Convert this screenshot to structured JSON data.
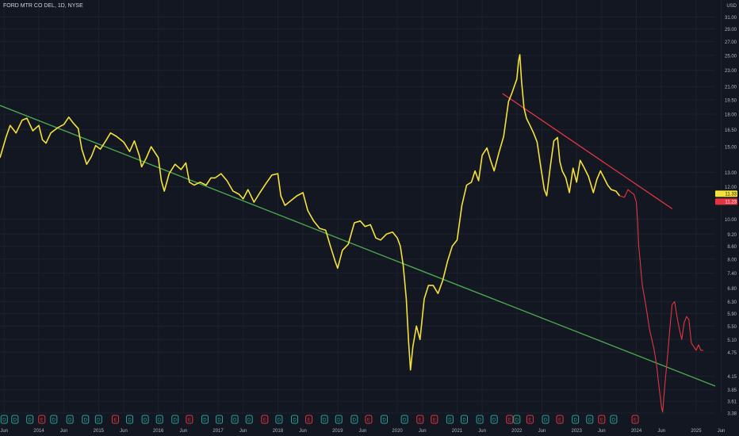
{
  "header": {
    "title": "FORD MTR CO DEL, 1D, NYSE"
  },
  "colors": {
    "background": "#131722",
    "grid": "#1e222d",
    "price_line": "#f5e13a",
    "projection_line": "#e3353f",
    "support_trendline": "#4caf50",
    "resistance_trendline": "#e3353f",
    "axis_text": "#b2b5be",
    "last_price_badge": "#f5e13a",
    "projected_price_badge": "#e3353f"
  },
  "chart_data": {
    "type": "line",
    "title": "FORD MTR CO DEL, 1D, NYSE",
    "y_axis": {
      "unit_label": "USD",
      "scale": "log",
      "ylim": [
        3.38,
        33.2
      ],
      "ticks": [
        "31.00",
        "29.00",
        "27.00",
        "25.00",
        "23.00",
        "21.00",
        "19.50",
        "18.00",
        "16.50",
        "15.00",
        "13.00",
        "12.00",
        "10.00",
        "9.20",
        "8.60",
        "8.00",
        "7.40",
        "6.80",
        "6.30",
        "5.90",
        "5.50",
        "5.10",
        "4.75",
        "4.15",
        "3.85",
        "3.61",
        "3.38"
      ]
    },
    "x_axis": {
      "range": [
        2013.35,
        2025.32
      ],
      "ticks": [
        {
          "label": "Jun",
          "t": 2013.42
        },
        {
          "label": "2014",
          "t": 2014.0
        },
        {
          "label": "Jun",
          "t": 2014.42
        },
        {
          "label": "2015",
          "t": 2015.0
        },
        {
          "label": "Jun",
          "t": 2015.42
        },
        {
          "label": "2016",
          "t": 2016.0
        },
        {
          "label": "Jun",
          "t": 2016.42
        },
        {
          "label": "2017",
          "t": 2017.0
        },
        {
          "label": "Jun",
          "t": 2017.42
        },
        {
          "label": "2018",
          "t": 2018.0
        },
        {
          "label": "Jun",
          "t": 2018.42
        },
        {
          "label": "2019",
          "t": 2019.0
        },
        {
          "label": "Jun",
          "t": 2019.42
        },
        {
          "label": "2020",
          "t": 2020.0
        },
        {
          "label": "Jun",
          "t": 2020.42
        },
        {
          "label": "2021",
          "t": 2021.0
        },
        {
          "label": "Jun",
          "t": 2021.42
        },
        {
          "label": "2022",
          "t": 2022.0
        },
        {
          "label": "Jun",
          "t": 2022.42
        },
        {
          "label": "2023",
          "t": 2023.0
        },
        {
          "label": "Jun",
          "t": 2023.42
        },
        {
          "label": "2024",
          "t": 2024.0
        },
        {
          "label": "Jun",
          "t": 2024.42
        },
        {
          "label": "2025",
          "t": 2025.0
        },
        {
          "label": "Jun",
          "t": 2025.42
        }
      ]
    },
    "grid": true,
    "series": [
      {
        "kind": "price",
        "points": [
          [
            2013.35,
            14.1
          ],
          [
            2013.45,
            15.8
          ],
          [
            2013.52,
            16.9
          ],
          [
            2013.62,
            16.2
          ],
          [
            2013.72,
            17.4
          ],
          [
            2013.8,
            17.6
          ],
          [
            2013.9,
            16.4
          ],
          [
            2014.0,
            16.9
          ],
          [
            2014.06,
            15.6
          ],
          [
            2014.12,
            15.3
          ],
          [
            2014.2,
            16.2
          ],
          [
            2014.32,
            16.7
          ],
          [
            2014.42,
            17.0
          ],
          [
            2014.5,
            17.7
          ],
          [
            2014.58,
            17.1
          ],
          [
            2014.66,
            16.6
          ],
          [
            2014.72,
            14.8
          ],
          [
            2014.8,
            13.6
          ],
          [
            2014.88,
            14.2
          ],
          [
            2014.95,
            15.1
          ],
          [
            2015.03,
            14.8
          ],
          [
            2015.12,
            15.5
          ],
          [
            2015.2,
            16.2
          ],
          [
            2015.3,
            15.9
          ],
          [
            2015.42,
            15.4
          ],
          [
            2015.52,
            14.6
          ],
          [
            2015.6,
            15.5
          ],
          [
            2015.68,
            14.3
          ],
          [
            2015.72,
            13.4
          ],
          [
            2015.8,
            14.1
          ],
          [
            2015.88,
            15.0
          ],
          [
            2016.0,
            14.1
          ],
          [
            2016.05,
            12.4
          ],
          [
            2016.1,
            11.7
          ],
          [
            2016.18,
            12.9
          ],
          [
            2016.28,
            13.6
          ],
          [
            2016.38,
            13.2
          ],
          [
            2016.46,
            13.7
          ],
          [
            2016.52,
            12.3
          ],
          [
            2016.6,
            12.1
          ],
          [
            2016.7,
            12.3
          ],
          [
            2016.8,
            12.1
          ],
          [
            2016.88,
            12.6
          ],
          [
            2016.95,
            12.6
          ],
          [
            2017.05,
            12.9
          ],
          [
            2017.15,
            12.4
          ],
          [
            2017.25,
            11.7
          ],
          [
            2017.35,
            11.5
          ],
          [
            2017.42,
            11.2
          ],
          [
            2017.5,
            11.8
          ],
          [
            2017.6,
            11.0
          ],
          [
            2017.7,
            11.6
          ],
          [
            2017.8,
            12.2
          ],
          [
            2017.9,
            12.8
          ],
          [
            2018.0,
            12.9
          ],
          [
            2018.05,
            11.4
          ],
          [
            2018.12,
            10.8
          ],
          [
            2018.22,
            11.1
          ],
          [
            2018.32,
            11.4
          ],
          [
            2018.42,
            11.6
          ],
          [
            2018.5,
            10.5
          ],
          [
            2018.6,
            9.9
          ],
          [
            2018.7,
            9.5
          ],
          [
            2018.8,
            9.4
          ],
          [
            2018.88,
            8.6
          ],
          [
            2018.96,
            7.9
          ],
          [
            2019.0,
            7.6
          ],
          [
            2019.08,
            8.4
          ],
          [
            2019.18,
            8.7
          ],
          [
            2019.28,
            9.8
          ],
          [
            2019.38,
            9.9
          ],
          [
            2019.46,
            9.6
          ],
          [
            2019.55,
            9.7
          ],
          [
            2019.64,
            9.0
          ],
          [
            2019.72,
            8.9
          ],
          [
            2019.82,
            9.2
          ],
          [
            2019.92,
            9.3
          ],
          [
            2020.0,
            9.0
          ],
          [
            2020.05,
            8.6
          ],
          [
            2020.1,
            7.7
          ],
          [
            2020.15,
            6.4
          ],
          [
            2020.19,
            5.0
          ],
          [
            2020.22,
            4.3
          ],
          [
            2020.26,
            4.9
          ],
          [
            2020.32,
            5.5
          ],
          [
            2020.38,
            5.1
          ],
          [
            2020.45,
            6.4
          ],
          [
            2020.52,
            6.9
          ],
          [
            2020.6,
            6.9
          ],
          [
            2020.68,
            6.6
          ],
          [
            2020.76,
            7.1
          ],
          [
            2020.84,
            7.9
          ],
          [
            2020.92,
            8.6
          ],
          [
            2021.0,
            8.9
          ],
          [
            2021.08,
            10.8
          ],
          [
            2021.16,
            12.1
          ],
          [
            2021.24,
            12.3
          ],
          [
            2021.3,
            13.1
          ],
          [
            2021.36,
            12.4
          ],
          [
            2021.42,
            14.3
          ],
          [
            2021.5,
            14.9
          ],
          [
            2021.56,
            13.9
          ],
          [
            2021.62,
            13.1
          ],
          [
            2021.7,
            14.5
          ],
          [
            2021.78,
            15.9
          ],
          [
            2021.86,
            19.3
          ],
          [
            2021.92,
            20.3
          ],
          [
            2021.96,
            21.1
          ],
          [
            2022.0,
            21.9
          ],
          [
            2022.03,
            24.3
          ],
          [
            2022.05,
            25.1
          ],
          [
            2022.08,
            21.6
          ],
          [
            2022.12,
            18.6
          ],
          [
            2022.16,
            17.6
          ],
          [
            2022.22,
            16.9
          ],
          [
            2022.28,
            16.2
          ],
          [
            2022.34,
            15.4
          ],
          [
            2022.4,
            13.4
          ],
          [
            2022.46,
            11.8
          ],
          [
            2022.5,
            11.4
          ],
          [
            2022.56,
            13.4
          ],
          [
            2022.62,
            15.5
          ],
          [
            2022.68,
            15.8
          ],
          [
            2022.72,
            13.8
          ],
          [
            2022.76,
            13.1
          ],
          [
            2022.82,
            12.6
          ],
          [
            2022.88,
            11.6
          ],
          [
            2022.94,
            13.3
          ],
          [
            2023.0,
            12.3
          ],
          [
            2023.06,
            13.9
          ],
          [
            2023.12,
            13.4
          ],
          [
            2023.2,
            12.7
          ],
          [
            2023.28,
            11.6
          ],
          [
            2023.34,
            12.5
          ],
          [
            2023.4,
            13.1
          ],
          [
            2023.46,
            12.6
          ],
          [
            2023.52,
            12.1
          ],
          [
            2023.58,
            11.8
          ],
          [
            2023.66,
            11.7
          ],
          [
            2023.72,
            11.4
          ]
        ]
      },
      {
        "kind": "projection",
        "points": [
          [
            2023.72,
            11.4
          ],
          [
            2023.8,
            11.3
          ],
          [
            2023.86,
            11.8
          ],
          [
            2023.92,
            11.6
          ],
          [
            2023.96,
            11.5
          ],
          [
            2024.0,
            11.0
          ],
          [
            2024.02,
            10.0
          ],
          [
            2024.04,
            8.6
          ],
          [
            2024.06,
            8.0
          ],
          [
            2024.08,
            7.4
          ],
          [
            2024.1,
            6.9
          ],
          [
            2024.14,
            6.4
          ],
          [
            2024.18,
            5.9
          ],
          [
            2024.22,
            5.4
          ],
          [
            2024.26,
            5.1
          ],
          [
            2024.3,
            4.8
          ],
          [
            2024.34,
            4.4
          ],
          [
            2024.38,
            3.9
          ],
          [
            2024.42,
            3.5
          ],
          [
            2024.44,
            3.4
          ],
          [
            2024.48,
            4.0
          ],
          [
            2024.52,
            4.6
          ],
          [
            2024.56,
            5.4
          ],
          [
            2024.6,
            6.2
          ],
          [
            2024.64,
            6.3
          ],
          [
            2024.68,
            5.8
          ],
          [
            2024.72,
            5.4
          ],
          [
            2024.76,
            5.1
          ],
          [
            2024.8,
            5.6
          ],
          [
            2024.84,
            5.8
          ],
          [
            2024.88,
            5.7
          ],
          [
            2024.92,
            5.0
          ],
          [
            2024.96,
            4.9
          ],
          [
            2025.0,
            4.8
          ],
          [
            2025.04,
            4.95
          ],
          [
            2025.08,
            4.8
          ],
          [
            2025.12,
            4.8
          ]
        ]
      }
    ],
    "trendlines": [
      {
        "kind": "support",
        "from": [
          2013.35,
          18.9
        ],
        "to": [
          2025.32,
          3.93
        ]
      },
      {
        "kind": "resistance",
        "from": [
          2021.76,
          20.2
        ],
        "to": [
          2024.6,
          10.6
        ]
      }
    ],
    "price_labels": [
      {
        "value": 11.33,
        "text": "11.33",
        "kind": "last"
      },
      {
        "value": 11.23,
        "text": "11.23",
        "kind": "projected"
      }
    ],
    "event_markers": [
      {
        "t": 2013.42,
        "code": "D"
      },
      {
        "t": 2013.6,
        "code": "D"
      },
      {
        "t": 2013.85,
        "code": "D"
      },
      {
        "t": 2014.05,
        "code": "E"
      },
      {
        "t": 2014.25,
        "code": "D"
      },
      {
        "t": 2014.52,
        "code": "D"
      },
      {
        "t": 2014.78,
        "code": "D"
      },
      {
        "t": 2015.0,
        "code": "D"
      },
      {
        "t": 2015.28,
        "code": "E"
      },
      {
        "t": 2015.52,
        "code": "D"
      },
      {
        "t": 2015.78,
        "code": "D"
      },
      {
        "t": 2016.02,
        "code": "D"
      },
      {
        "t": 2016.28,
        "code": "D"
      },
      {
        "t": 2016.52,
        "code": "E"
      },
      {
        "t": 2016.78,
        "code": "D"
      },
      {
        "t": 2017.02,
        "code": "D"
      },
      {
        "t": 2017.28,
        "code": "D"
      },
      {
        "t": 2017.52,
        "code": "D"
      },
      {
        "t": 2017.78,
        "code": "E"
      },
      {
        "t": 2018.02,
        "code": "D"
      },
      {
        "t": 2018.28,
        "code": "D"
      },
      {
        "t": 2018.52,
        "code": "E"
      },
      {
        "t": 2018.78,
        "code": "D"
      },
      {
        "t": 2019.02,
        "code": "D"
      },
      {
        "t": 2019.28,
        "code": "D"
      },
      {
        "t": 2019.52,
        "code": "E"
      },
      {
        "t": 2019.78,
        "code": "D"
      },
      {
        "t": 2020.12,
        "code": "D"
      },
      {
        "t": 2020.38,
        "code": "E"
      },
      {
        "t": 2020.62,
        "code": "E"
      },
      {
        "t": 2020.88,
        "code": "D"
      },
      {
        "t": 2021.12,
        "code": "D"
      },
      {
        "t": 2021.38,
        "code": "D"
      },
      {
        "t": 2021.62,
        "code": "D"
      },
      {
        "t": 2021.88,
        "code": "E"
      },
      {
        "t": 2022.0,
        "code": "D"
      },
      {
        "t": 2022.22,
        "code": "E"
      },
      {
        "t": 2022.48,
        "code": "D"
      },
      {
        "t": 2022.72,
        "code": "E"
      },
      {
        "t": 2022.98,
        "code": "D"
      },
      {
        "t": 2023.22,
        "code": "D"
      },
      {
        "t": 2023.42,
        "code": "E"
      },
      {
        "t": 2023.62,
        "code": "D"
      },
      {
        "t": 2023.98,
        "code": "E"
      }
    ]
  }
}
